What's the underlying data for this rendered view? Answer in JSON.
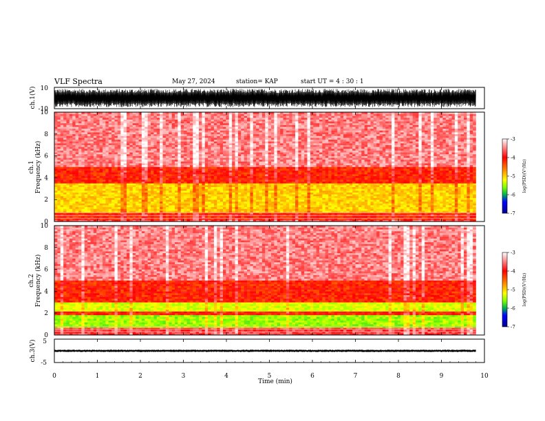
{
  "header": {
    "title": "VLF Spectra",
    "date": "May 27, 2024",
    "station": "station= KAP",
    "start": "start  UT =   4 : 30 : 1"
  },
  "colors": {
    "colormap": [
      "#00008b",
      "#0000ff",
      "#00b050",
      "#7fff00",
      "#ffff00",
      "#ff8c00",
      "#ff0000",
      "#ffffff"
    ]
  },
  "chart_data": [
    {
      "type": "line",
      "name": "waveform-ch1",
      "ylabel": "ch.1(V)",
      "ylim": [
        -10,
        10
      ],
      "yticks": [
        "10",
        "-10"
      ],
      "xlim": [
        0,
        10
      ]
    },
    {
      "type": "heatmap",
      "name": "spectrogram-ch1",
      "ylabel_line1": "ch.1",
      "ylabel_line2": "Frequency (kHz)",
      "ylim": [
        0,
        10
      ],
      "yticks": [
        0,
        2,
        4,
        6,
        8,
        10
      ],
      "xlim": [
        0,
        9.8
      ],
      "colorbar": {
        "label": "log(PSD)(V²/Hz)",
        "ticks": [
          "-3",
          "-4",
          "-5",
          "-6",
          "-7"
        ],
        "range": [
          -7,
          -3
        ]
      },
      "bands": [
        {
          "from": 0.0,
          "to": 0.2,
          "level": -3.6
        },
        {
          "from": 0.2,
          "to": 0.9,
          "level": -3.9
        },
        {
          "from": 0.9,
          "to": 3.5,
          "level": -4.6
        },
        {
          "from": 3.5,
          "to": 5.0,
          "level": -3.9
        },
        {
          "from": 5.0,
          "to": 10.0,
          "level": -3.4
        }
      ]
    },
    {
      "type": "heatmap",
      "name": "spectrogram-ch2",
      "ylabel_line1": "ch.2",
      "ylabel_line2": "Frequency (kHz)",
      "ylim": [
        0,
        10
      ],
      "yticks": [
        0,
        2,
        4,
        6,
        8,
        10
      ],
      "xlim": [
        0,
        9.8
      ],
      "colorbar": {
        "label": "log(PSD)(V²/Hz)",
        "ticks": [
          "-3",
          "-4",
          "-5",
          "-6",
          "-7"
        ],
        "range": [
          -7,
          -3
        ]
      },
      "bands": [
        {
          "from": 0.0,
          "to": 0.6,
          "level": -3.6
        },
        {
          "from": 0.6,
          "to": 1.9,
          "level": -5.1
        },
        {
          "from": 1.9,
          "to": 2.1,
          "level": -3.9
        },
        {
          "from": 2.1,
          "to": 3.0,
          "level": -4.9
        },
        {
          "from": 3.0,
          "to": 5.0,
          "level": -3.9
        },
        {
          "from": 5.0,
          "to": 10.0,
          "level": -3.4
        }
      ]
    },
    {
      "type": "line",
      "name": "waveform-ch3",
      "ylabel": "ch.3(V)",
      "ylim": [
        -5,
        5
      ],
      "yticks": [
        "5",
        "-5"
      ],
      "xlim": [
        0,
        10
      ]
    }
  ],
  "xaxis": {
    "label": "Time (min)",
    "range": [
      0,
      10
    ],
    "ticks": [
      "0",
      "1",
      "2",
      "3",
      "4",
      "5",
      "6",
      "7",
      "8",
      "9",
      "10"
    ]
  }
}
